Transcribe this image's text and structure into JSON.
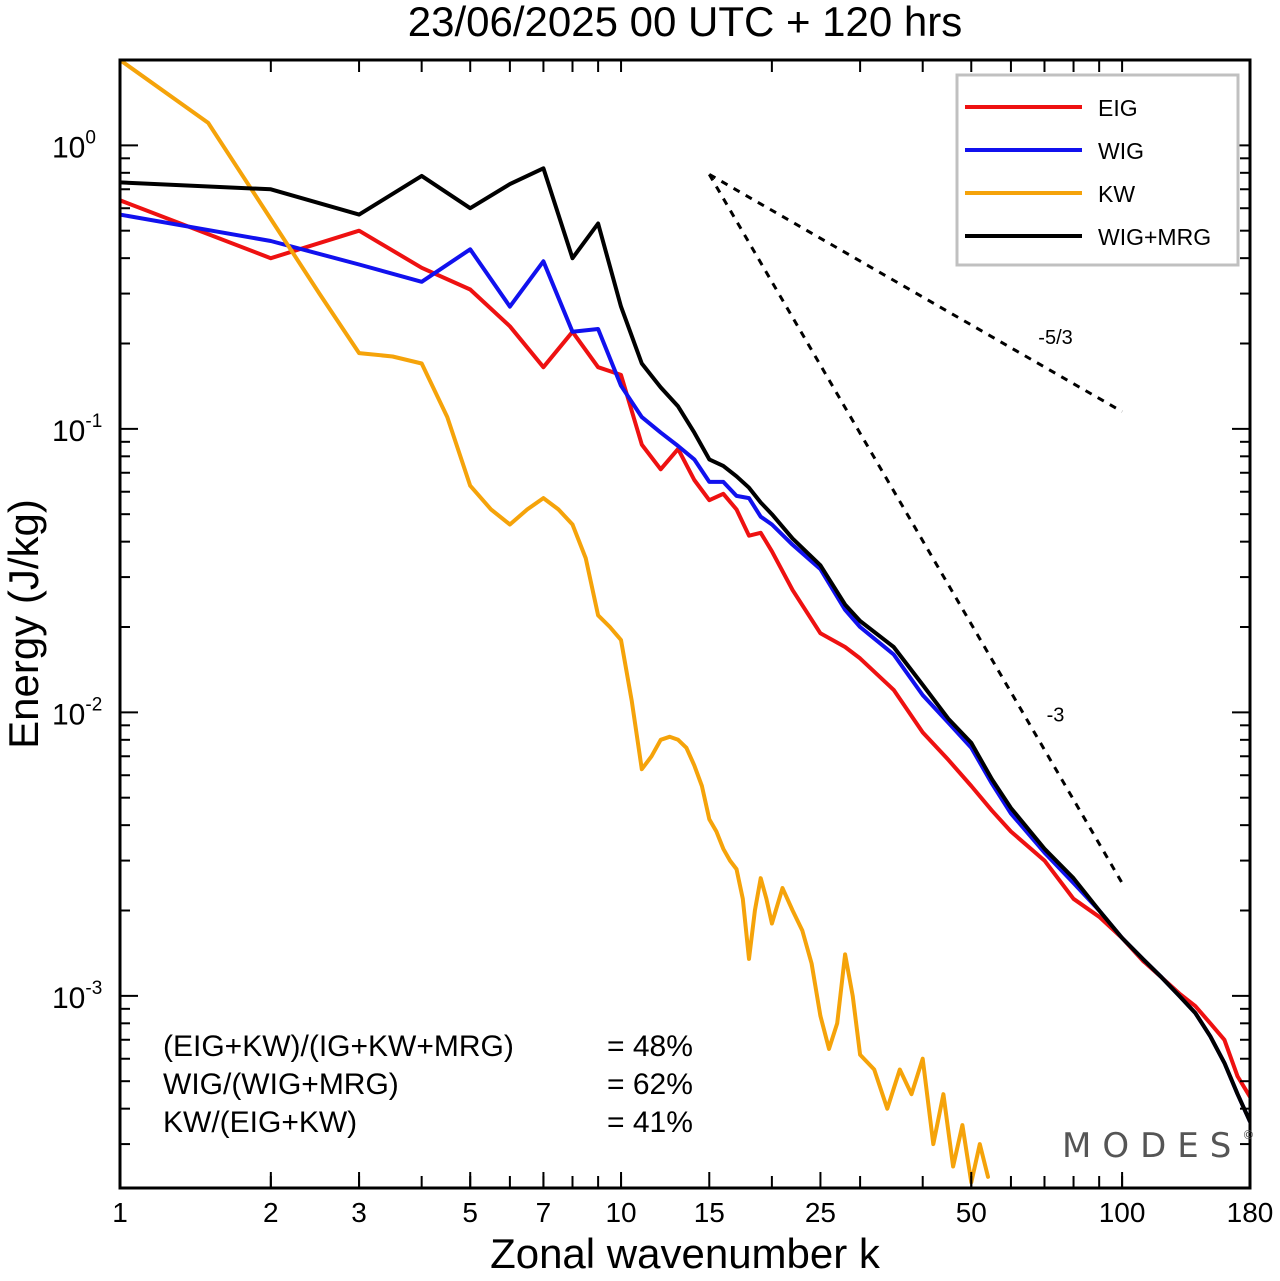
{
  "chart_data": {
    "type": "line",
    "title": "23/06/2025  00 UTC  + 120 hrs",
    "xlabel": "Zonal wavenumber k",
    "ylabel": "Energy (J/kg)",
    "xscale": "log",
    "yscale": "log",
    "xlim": [
      1,
      180
    ],
    "ylim": [
      0.00021,
      2.0
    ],
    "x_ticks": [
      {
        "value": 1,
        "label": "1"
      },
      {
        "value": 2,
        "label": "2"
      },
      {
        "value": 3,
        "label": "3"
      },
      {
        "value": 5,
        "label": "5"
      },
      {
        "value": 7,
        "label": "7"
      },
      {
        "value": 10,
        "label": "10"
      },
      {
        "value": 15,
        "label": "15"
      },
      {
        "value": 25,
        "label": "25"
      },
      {
        "value": 50,
        "label": "50"
      },
      {
        "value": 100,
        "label": "100"
      },
      {
        "value": 180,
        "label": "180"
      }
    ],
    "y_ticks": [
      {
        "value": 1,
        "base": "10",
        "exp": "0"
      },
      {
        "value": 0.1,
        "base": "10",
        "exp": "-1"
      },
      {
        "value": 0.01,
        "base": "10",
        "exp": "-2"
      },
      {
        "value": 0.001,
        "base": "10",
        "exp": "-3"
      }
    ],
    "grid": false,
    "legend_position": "top-right",
    "series": [
      {
        "name": "EIG",
        "color": "#ee1111",
        "x": [
          1,
          2,
          3,
          4,
          5,
          6,
          7,
          8,
          9,
          10,
          11,
          12,
          13,
          14,
          15,
          16,
          17,
          18,
          19,
          20,
          22,
          25,
          28,
          30,
          35,
          40,
          45,
          50,
          55,
          60,
          70,
          80,
          90,
          100,
          110,
          120,
          130,
          140,
          150,
          160,
          170,
          180
        ],
        "y": [
          0.64,
          0.4,
          0.5,
          0.37,
          0.31,
          0.23,
          0.165,
          0.22,
          0.165,
          0.155,
          0.088,
          0.072,
          0.085,
          0.066,
          0.056,
          0.059,
          0.052,
          0.042,
          0.043,
          0.037,
          0.027,
          0.019,
          0.017,
          0.0155,
          0.012,
          0.0085,
          0.0068,
          0.0055,
          0.0045,
          0.0038,
          0.003,
          0.0022,
          0.0019,
          0.0016,
          0.00133,
          0.00116,
          0.00102,
          0.00092,
          0.0008,
          0.0007,
          0.00052,
          0.00044
        ]
      },
      {
        "name": "WIG",
        "color": "#1111ee",
        "x": [
          1,
          2,
          3,
          4,
          5,
          6,
          7,
          8,
          9,
          10,
          11,
          12,
          13,
          14,
          15,
          16,
          17,
          18,
          19,
          20,
          22,
          25,
          28,
          30,
          35,
          40,
          45,
          50,
          55,
          60,
          70,
          80,
          90,
          100,
          110,
          120,
          130,
          140,
          150,
          160,
          170,
          180
        ],
        "y": [
          0.57,
          0.46,
          0.38,
          0.33,
          0.43,
          0.27,
          0.39,
          0.22,
          0.225,
          0.142,
          0.11,
          0.097,
          0.087,
          0.078,
          0.065,
          0.065,
          0.058,
          0.057,
          0.049,
          0.046,
          0.039,
          0.032,
          0.023,
          0.02,
          0.016,
          0.0115,
          0.0092,
          0.0075,
          0.0056,
          0.0044,
          0.0032,
          0.0025,
          0.002,
          0.0016,
          0.00135,
          0.00116,
          0.001,
          0.00087,
          0.00072,
          0.00058,
          0.00045,
          0.00036
        ]
      },
      {
        "name": "KW",
        "color": "#f5a30a",
        "x": [
          1,
          1.5,
          2,
          2.5,
          3,
          3.5,
          4,
          4.5,
          5,
          5.5,
          6,
          6.5,
          7,
          7.5,
          8,
          8.5,
          9,
          9.5,
          10,
          10.5,
          11,
          11.5,
          12,
          12.5,
          13,
          13.5,
          14,
          14.5,
          15,
          15.5,
          16,
          16.5,
          17,
          17.5,
          18,
          18.5,
          19,
          19.5,
          20,
          21,
          22,
          23,
          24,
          25,
          26,
          27,
          28,
          29,
          30,
          32,
          34,
          36,
          38,
          40,
          42,
          44,
          46,
          48,
          50,
          52,
          54
        ],
        "y": [
          2.0,
          1.2,
          0.55,
          0.3,
          0.185,
          0.18,
          0.17,
          0.11,
          0.063,
          0.052,
          0.046,
          0.052,
          0.057,
          0.052,
          0.046,
          0.035,
          0.022,
          0.02,
          0.018,
          0.011,
          0.0063,
          0.007,
          0.008,
          0.0082,
          0.008,
          0.0075,
          0.0065,
          0.0055,
          0.0042,
          0.0038,
          0.0033,
          0.003,
          0.0028,
          0.0022,
          0.00135,
          0.002,
          0.0026,
          0.0022,
          0.0018,
          0.0024,
          0.002,
          0.0017,
          0.0013,
          0.00085,
          0.00065,
          0.0008,
          0.0014,
          0.001,
          0.00062,
          0.00055,
          0.0004,
          0.00055,
          0.00045,
          0.0006,
          0.0003,
          0.00045,
          0.00025,
          0.00035,
          0.00022,
          0.0003,
          0.00023
        ]
      },
      {
        "name": "WIG+MRG",
        "color": "#000000",
        "x": [
          1,
          2,
          3,
          4,
          5,
          6,
          7,
          8,
          9,
          10,
          11,
          12,
          13,
          14,
          15,
          16,
          17,
          18,
          19,
          20,
          22,
          25,
          28,
          30,
          35,
          40,
          45,
          50,
          55,
          60,
          70,
          80,
          90,
          100,
          110,
          120,
          130,
          140,
          150,
          160,
          170,
          180
        ],
        "y": [
          0.74,
          0.7,
          0.57,
          0.78,
          0.6,
          0.73,
          0.83,
          0.4,
          0.53,
          0.27,
          0.17,
          0.14,
          0.12,
          0.097,
          0.078,
          0.074,
          0.068,
          0.062,
          0.055,
          0.05,
          0.041,
          0.033,
          0.024,
          0.021,
          0.017,
          0.0125,
          0.0095,
          0.0078,
          0.0058,
          0.0046,
          0.0033,
          0.0026,
          0.002,
          0.0016,
          0.00135,
          0.00116,
          0.001,
          0.00087,
          0.00072,
          0.00058,
          0.00045,
          0.00036
        ]
      }
    ],
    "annotations": [
      {
        "label": "-5/3",
        "x1": 15,
        "y1": 0.79,
        "x2": 100,
        "y2": 0.115
      },
      {
        "label": "-3",
        "x1": 15,
        "y1": 0.79,
        "x2": 100,
        "y2": 0.0025
      }
    ],
    "stats": [
      {
        "label": "(EIG+KW)/(IG+KW+MRG)",
        "value": "= 48%"
      },
      {
        "label": "WIG/(WIG+MRG)",
        "value": "= 62%"
      },
      {
        "label": "KW/(EIG+KW)",
        "value": "= 41%"
      }
    ],
    "watermark": "MODES",
    "watermark_mark": "©"
  }
}
